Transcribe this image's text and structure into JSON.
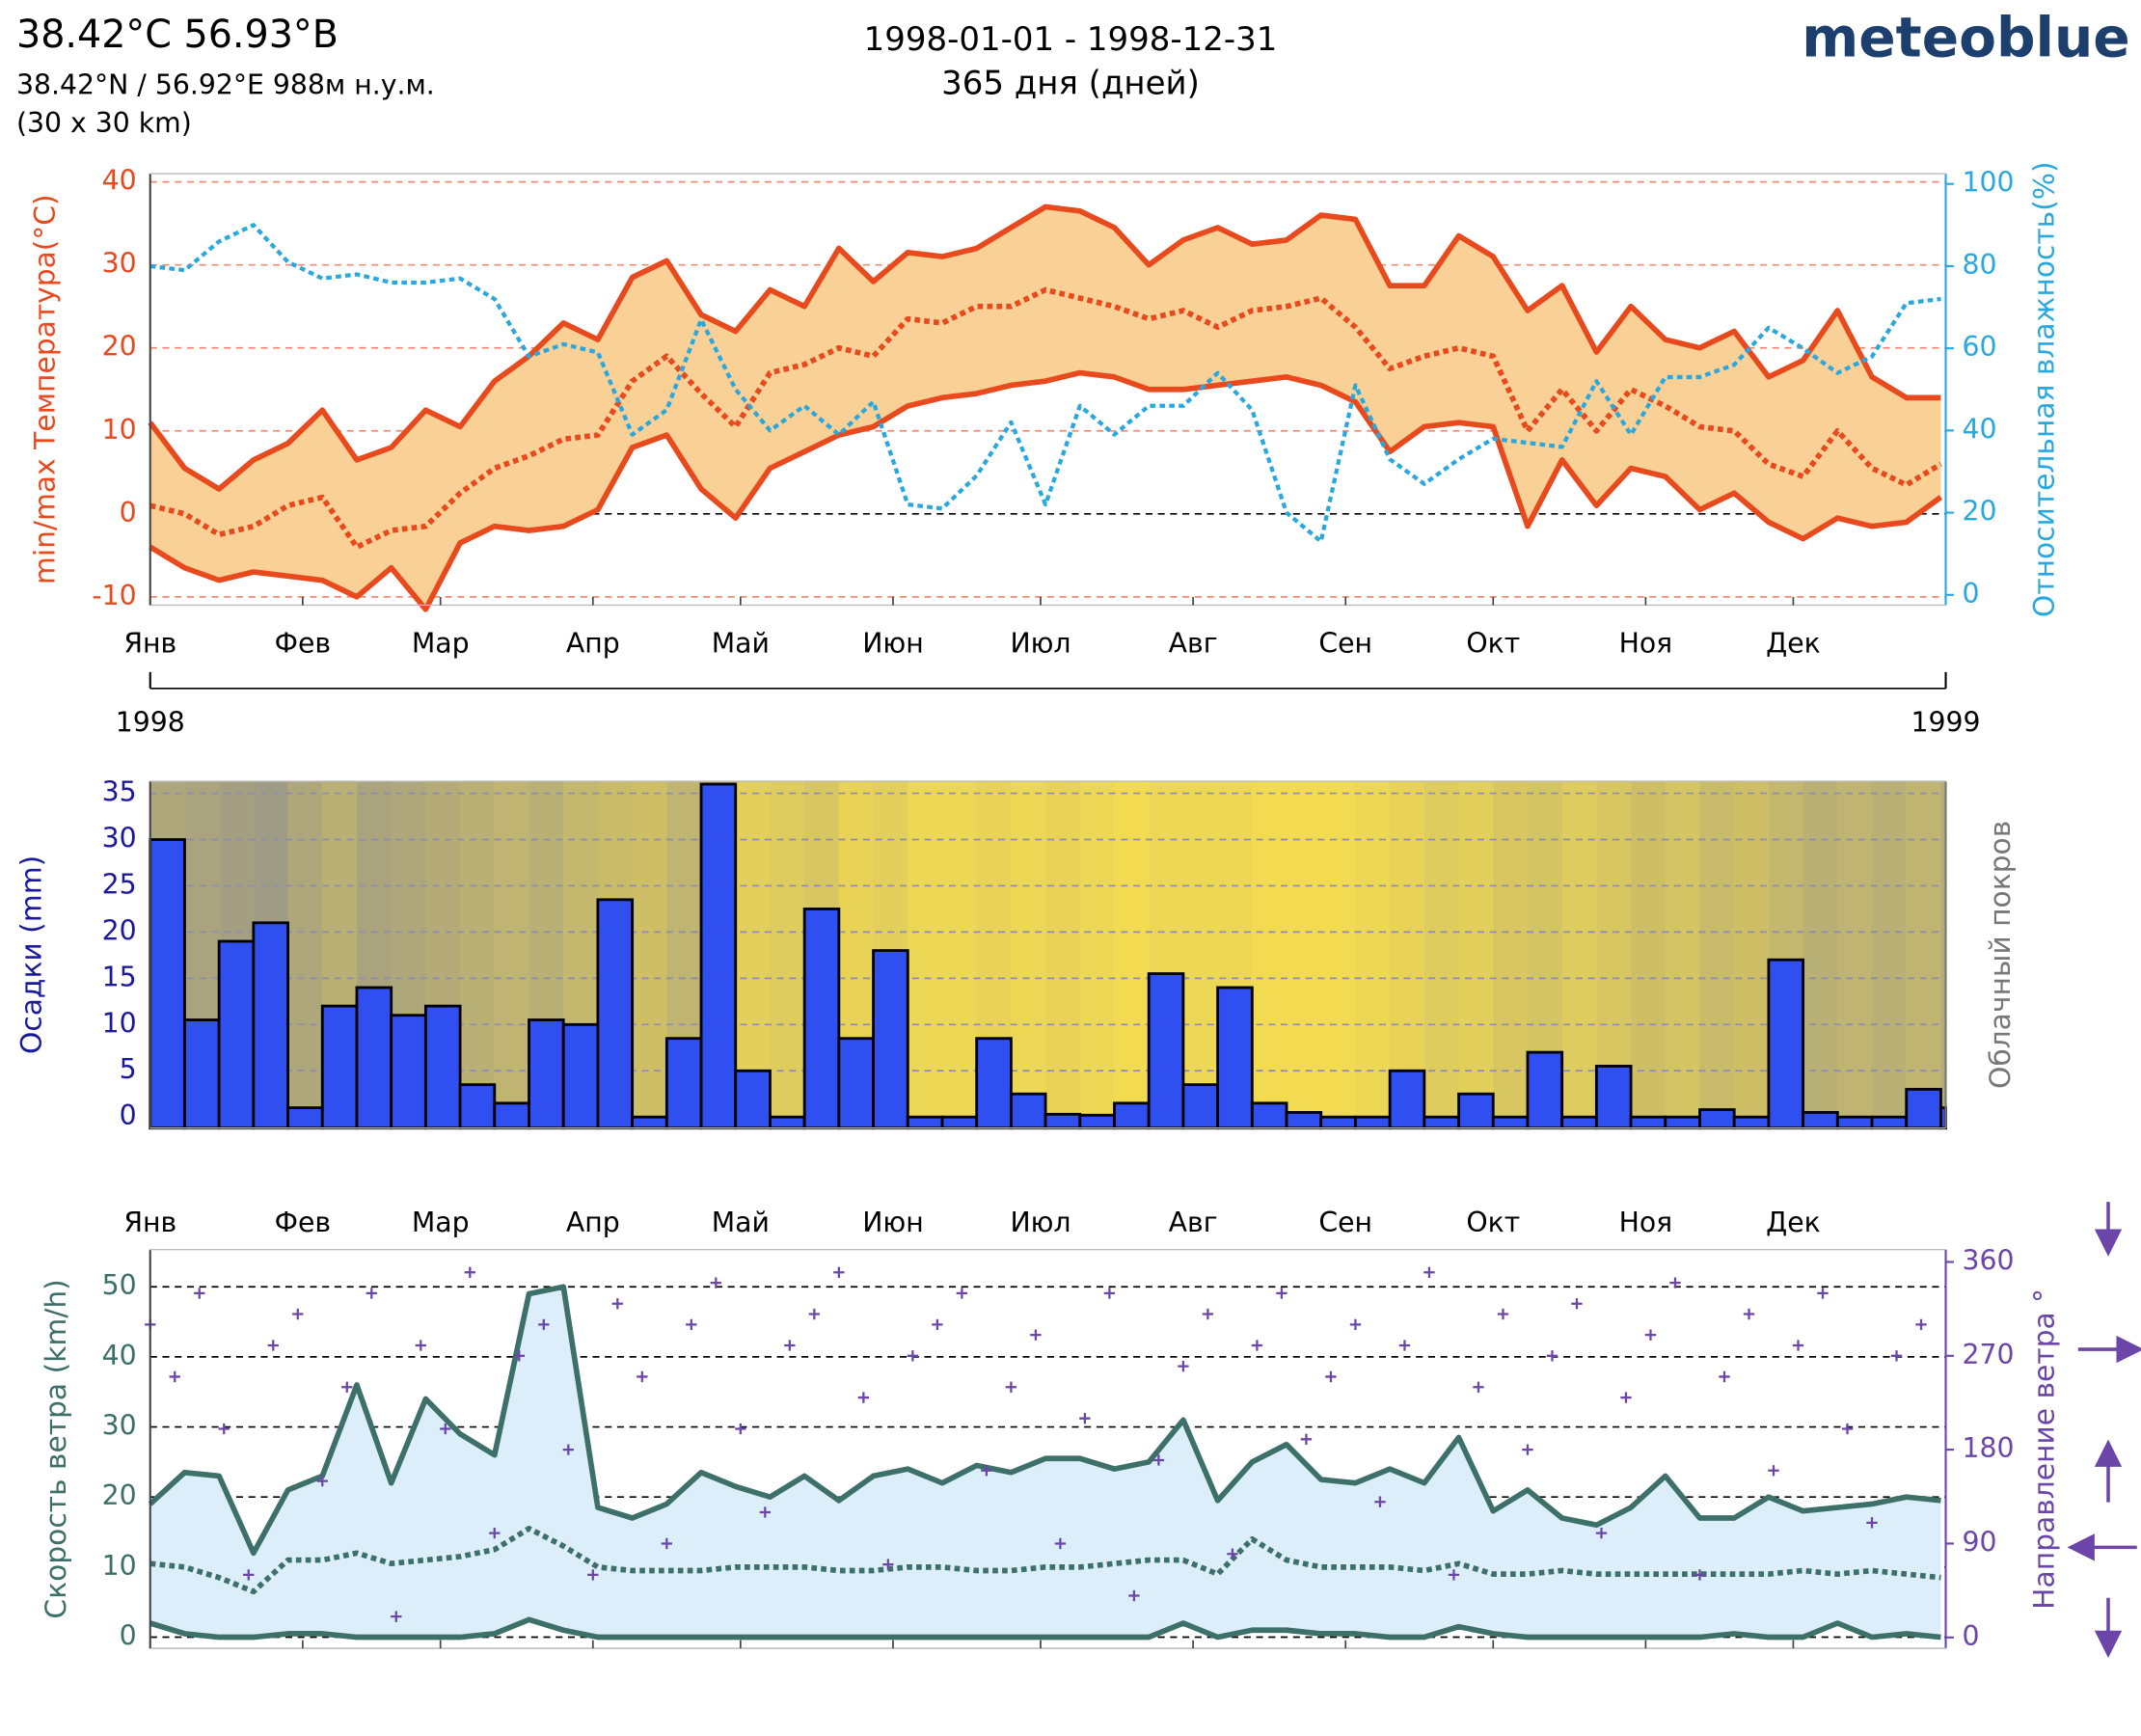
{
  "header": {
    "title": "38.42°C 56.93°B",
    "coords": "38.42°N / 56.92°E   988м н.у.м.",
    "resolution": "(30 x 30 km)",
    "period": "1998-01-01 - 1998-12-31",
    "days": "365 дня (дней)",
    "brand": "meteoblue"
  },
  "chart_data": [
    {
      "type": "line",
      "ylabel": "min/max Температура(°C)",
      "y2label": "Относительная влажность(%)",
      "ylabel_color": "#e8491d",
      "y2label_color": "#29a8e0",
      "x": [
        0,
        7,
        14,
        21,
        28,
        35,
        42,
        49,
        56,
        63,
        70,
        77,
        84,
        91,
        98,
        105,
        112,
        119,
        126,
        133,
        140,
        147,
        154,
        161,
        168,
        175,
        182,
        189,
        196,
        203,
        210,
        217,
        224,
        231,
        238,
        245,
        252,
        259,
        266,
        273,
        280,
        287,
        294,
        301,
        308,
        315,
        322,
        329,
        336,
        343,
        350,
        357,
        364
      ],
      "xlim": [
        0,
        365
      ],
      "xticks": [
        {
          "value": 0,
          "label": "Янв"
        },
        {
          "value": 31,
          "label": "Фев"
        },
        {
          "value": 59,
          "label": "Мар"
        },
        {
          "value": 90,
          "label": "Апр"
        },
        {
          "value": 120,
          "label": "Май"
        },
        {
          "value": 151,
          "label": "Июн"
        },
        {
          "value": 181,
          "label": "Июл"
        },
        {
          "value": 212,
          "label": "Авг"
        },
        {
          "value": 243,
          "label": "Сен"
        },
        {
          "value": 273,
          "label": "Окт"
        },
        {
          "value": 304,
          "label": "Ноя"
        },
        {
          "value": 334,
          "label": "Дек"
        }
      ],
      "year_ticks": [
        {
          "value": 0,
          "label": "1998"
        },
        {
          "value": 365,
          "label": "1999"
        }
      ],
      "ylim": [
        -11,
        41
      ],
      "yticks": [
        -10,
        0,
        10,
        20,
        30,
        40
      ],
      "y2lim": [
        -2.5,
        102.5
      ],
      "y2ticks": [
        0,
        20,
        40,
        60,
        80,
        100
      ],
      "grid": true,
      "grid_color": "#f08a70",
      "zero_color": "#000000",
      "band_fill": "#f9d095",
      "series": [
        {
          "color": "#e8491d",
          "line_style": "solid",
          "values": [
            11,
            5.5,
            3,
            6.5,
            8.5,
            12.5,
            6.5,
            8,
            12.5,
            10.5,
            16,
            19,
            23,
            21,
            28.5,
            30.5,
            24,
            22,
            27,
            25,
            32,
            28,
            31.5,
            31,
            32,
            34.5,
            37,
            36.5,
            34.5,
            30,
            33,
            34.5,
            32.5,
            33,
            36,
            35.5,
            27.5,
            27.5,
            33.5,
            31,
            24.5,
            27.5,
            19.5,
            25,
            21,
            20,
            22,
            16.5,
            18.5,
            24.5,
            16.5,
            14,
            14
          ]
        },
        {
          "color": "#e8491d",
          "line_style": "dotted",
          "values": [
            1,
            0,
            -2.5,
            -1.5,
            1,
            2,
            -4,
            -2,
            -1.5,
            2.5,
            5.5,
            7,
            9,
            9.5,
            16,
            19,
            14.5,
            10.5,
            17,
            18,
            20,
            19,
            23.5,
            23,
            25,
            25,
            27,
            26,
            25,
            23.5,
            24.5,
            22.5,
            24.5,
            25,
            26,
            22.5,
            17.5,
            19,
            20,
            19,
            10,
            15,
            10,
            15,
            13,
            10.5,
            10,
            6,
            4.5,
            10,
            5.5,
            3.5,
            6
          ]
        },
        {
          "color": "#e8491d",
          "line_style": "solid",
          "values": [
            -4,
            -6.5,
            -8,
            -7,
            -7.5,
            -8,
            -10,
            -6.5,
            -11.5,
            -3.5,
            -1.5,
            -2,
            -1.5,
            0.5,
            8,
            9.5,
            3,
            -0.5,
            5.5,
            7.5,
            9.5,
            10.5,
            13,
            14,
            14.5,
            15.5,
            16,
            17,
            16.5,
            15,
            15,
            15.5,
            16,
            16.5,
            15.5,
            13.5,
            7.5,
            10.5,
            11,
            10.5,
            -1.5,
            6.5,
            1,
            5.5,
            4.5,
            0.5,
            2.5,
            -1,
            -3,
            -0.5,
            -1.5,
            -1,
            2
          ]
        },
        {
          "color": "#29a8e0",
          "line_style": "dotted",
          "axis": "y2",
          "values": [
            80,
            79,
            86,
            90,
            81,
            77,
            78,
            76,
            76,
            77,
            72,
            58,
            61,
            59,
            39,
            45,
            67,
            50,
            40,
            46,
            39,
            47,
            22,
            21,
            29,
            42,
            22,
            46,
            39,
            46,
            46,
            54,
            45,
            20,
            13,
            51,
            33,
            27,
            33,
            38,
            37,
            36,
            52,
            39,
            53,
            53,
            56,
            65,
            60,
            54,
            58,
            71,
            72
          ]
        }
      ]
    },
    {
      "type": "histogram",
      "ylabel": "Осадки (mm)",
      "y2label": "Облачный покров",
      "ylabel_color": "#1a1a99",
      "y2label_color": "#777777",
      "bins": [
        0,
        7,
        14,
        21,
        28,
        35,
        42,
        49,
        56,
        63,
        70,
        77,
        84,
        91,
        98,
        105,
        112,
        119,
        126,
        133,
        140,
        147,
        154,
        161,
        168,
        175,
        182,
        189,
        196,
        203,
        210,
        217,
        224,
        231,
        238,
        245,
        252,
        259,
        266,
        273,
        280,
        287,
        294,
        301,
        308,
        315,
        322,
        329,
        336,
        343,
        350,
        357,
        364,
        365
      ],
      "values": [
        30,
        10.5,
        19,
        21,
        1,
        12,
        14,
        11,
        12,
        3.5,
        1.5,
        10.5,
        10,
        23.5,
        0,
        8.5,
        36,
        5,
        0,
        22.5,
        8.5,
        18,
        0,
        0,
        8.5,
        2.5,
        0.3,
        0.2,
        1.5,
        15.5,
        3.5,
        14,
        1.5,
        0.5,
        0,
        0,
        5,
        0,
        2.5,
        0,
        7,
        0,
        5.5,
        0,
        0,
        0.8,
        0,
        17,
        0.5,
        0,
        0,
        3,
        1
      ],
      "color": "#2f4ff0",
      "xlim": [
        0,
        365
      ],
      "ylim": [
        -1.2,
        36.3
      ],
      "yticks": [
        0,
        5,
        10,
        15,
        20,
        25,
        30,
        35
      ],
      "grid": true,
      "grid_color": "#8c8cb4",
      "background": "#f8e04e",
      "cloud_cover": {
        "color": "#8f8f8f",
        "values": [
          70,
          75,
          80,
          85,
          70,
          60,
          75,
          70,
          65,
          60,
          55,
          60,
          50,
          45,
          40,
          55,
          40,
          20,
          25,
          30,
          15,
          20,
          10,
          10,
          15,
          10,
          15,
          10,
          5,
          10,
          10,
          10,
          5,
          5,
          5,
          10,
          15,
          25,
          20,
          30,
          35,
          25,
          30,
          40,
          35,
          45,
          40,
          50,
          60,
          55,
          60,
          55,
          65
        ]
      }
    },
    {
      "type": "line",
      "ylabel": "Скорость ветра (km/h)",
      "y2label": "Направление ветра °",
      "ylabel_color": "#3d6e68",
      "y2label_color": "#6b46a8",
      "x": [
        0,
        7,
        14,
        21,
        28,
        35,
        42,
        49,
        56,
        63,
        70,
        77,
        84,
        91,
        98,
        105,
        112,
        119,
        126,
        133,
        140,
        147,
        154,
        161,
        168,
        175,
        182,
        189,
        196,
        203,
        210,
        217,
        224,
        231,
        238,
        245,
        252,
        259,
        266,
        273,
        280,
        287,
        294,
        301,
        308,
        315,
        322,
        329,
        336,
        343,
        350,
        357,
        364
      ],
      "xlim": [
        0,
        365
      ],
      "xticks": [
        {
          "value": 0,
          "label": "Янв"
        },
        {
          "value": 31,
          "label": "Фев"
        },
        {
          "value": 59,
          "label": "Мар"
        },
        {
          "value": 90,
          "label": "Апр"
        },
        {
          "value": 120,
          "label": "Май"
        },
        {
          "value": 151,
          "label": "Июн"
        },
        {
          "value": 181,
          "label": "Июл"
        },
        {
          "value": 212,
          "label": "Авг"
        },
        {
          "value": 243,
          "label": "Сен"
        },
        {
          "value": 273,
          "label": "Окт"
        },
        {
          "value": 304,
          "label": "Ноя"
        },
        {
          "value": 334,
          "label": "Дек"
        }
      ],
      "ylim": [
        -1.6,
        55.3
      ],
      "yticks": [
        0,
        10,
        20,
        30,
        40,
        50
      ],
      "y2lim": [
        -10.5,
        371.8
      ],
      "y2ticks": [
        0,
        90,
        180,
        270,
        360
      ],
      "grid": true,
      "grid_color": "#000000",
      "band_fill": "#dceefa",
      "series": [
        {
          "color": "#3d7068",
          "line_style": "solid",
          "values": [
            19,
            23.5,
            23,
            12,
            21,
            23,
            36,
            22,
            34,
            29,
            26,
            49,
            50,
            18.5,
            17,
            19,
            23.5,
            21.5,
            20,
            23,
            19.5,
            23,
            24,
            22,
            24.5,
            23.5,
            25.5,
            25.5,
            24,
            25,
            31,
            19.5,
            25,
            27.5,
            22.5,
            22,
            24,
            22,
            28.5,
            18,
            21,
            17,
            16,
            18.5,
            23,
            17,
            17,
            20,
            18,
            18.5,
            19,
            20,
            19.5
          ]
        },
        {
          "color": "#3d7068",
          "line_style": "dotted",
          "values": [
            10.5,
            10,
            8.5,
            6.5,
            11,
            11,
            12,
            10.5,
            11,
            11.5,
            12.5,
            15.5,
            13,
            10,
            9.5,
            9.5,
            9.5,
            10,
            10,
            10,
            9.5,
            9.5,
            10,
            10,
            9.5,
            9.5,
            10,
            10,
            10.5,
            11,
            11,
            9,
            14,
            11,
            10,
            10,
            10,
            9.5,
            10.5,
            9,
            9,
            9.5,
            9,
            9,
            9,
            9,
            9,
            9,
            9.5,
            9,
            9.5,
            9,
            8.5
          ]
        },
        {
          "color": "#3d7068",
          "line_style": "solid",
          "values": [
            2,
            0.5,
            0,
            0,
            0.5,
            0.5,
            0,
            0,
            0,
            0,
            0.5,
            2.5,
            1,
            0,
            0,
            0,
            0,
            0,
            0,
            0,
            0,
            0,
            0,
            0,
            0,
            0,
            0,
            0,
            0,
            0,
            2,
            0,
            1,
            1,
            0.5,
            0.5,
            0,
            0,
            1.5,
            0.5,
            0,
            0,
            0,
            0,
            0,
            0,
            0.5,
            0,
            0,
            2,
            0,
            0.5,
            0
          ]
        },
        {
          "color": "#6b46a8",
          "type": "scatter",
          "axis": "y2",
          "x": [
            0,
            5,
            10,
            15,
            20,
            25,
            30,
            35,
            40,
            45,
            50,
            55,
            60,
            65,
            70,
            75,
            80,
            85,
            90,
            95,
            100,
            105,
            110,
            115,
            120,
            125,
            130,
            135,
            140,
            145,
            150,
            155,
            160,
            165,
            170,
            175,
            180,
            185,
            190,
            195,
            200,
            205,
            210,
            215,
            220,
            225,
            230,
            235,
            240,
            245,
            250,
            255,
            260,
            265,
            270,
            275,
            280,
            285,
            290,
            295,
            300,
            305,
            310,
            315,
            320,
            325,
            330,
            335,
            340,
            345,
            350,
            355,
            360
          ],
          "values": [
            300,
            250,
            330,
            200,
            60,
            280,
            310,
            150,
            240,
            330,
            20,
            280,
            200,
            350,
            100,
            270,
            300,
            180,
            60,
            320,
            250,
            90,
            300,
            340,
            200,
            120,
            280,
            310,
            350,
            230,
            70,
            270,
            300,
            330,
            160,
            240,
            290,
            90,
            210,
            330,
            40,
            170,
            260,
            310,
            80,
            280,
            330,
            190,
            250,
            300,
            130,
            280,
            350,
            60,
            240,
            310,
            180,
            270,
            320,
            100,
            230,
            290,
            340,
            60,
            250,
            310,
            160,
            280,
            330,
            200,
            110,
            270,
            300
          ]
        }
      ]
    }
  ]
}
